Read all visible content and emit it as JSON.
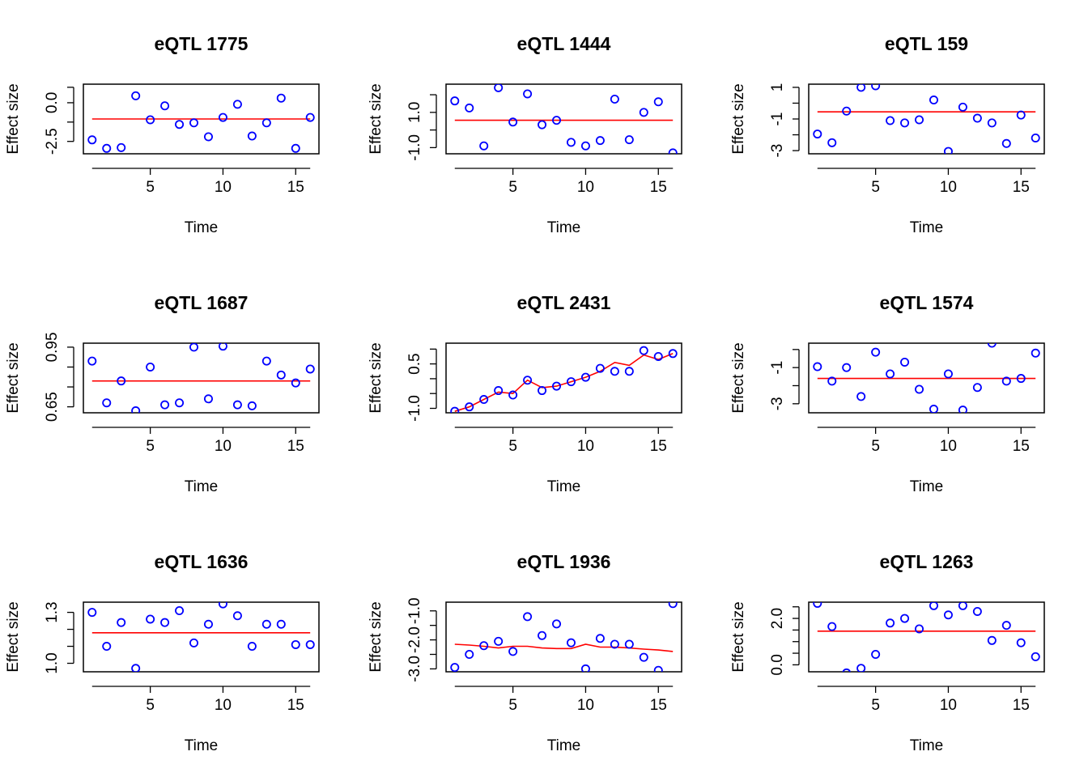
{
  "figure": {
    "xlabel": "Time",
    "ylabel": "Effect size"
  },
  "colors": {
    "points": "#0000ff",
    "fit": "#ff0000",
    "axes": "#000000"
  },
  "chart_data": [
    {
      "type": "scatter",
      "title": "eQTL 1775",
      "xlabel": "Time",
      "ylabel": "Effect size",
      "xlim": [
        0.4,
        16.6
      ],
      "ylim": [
        -3.3,
        1.2
      ],
      "xticks": [
        5,
        10,
        15
      ],
      "yticks": [
        -2.5,
        -1.25,
        0.0,
        1.0
      ],
      "yticklabels": [
        "-2.5",
        "",
        "0.0",
        ""
      ],
      "x": [
        1,
        2,
        3,
        4,
        5,
        6,
        7,
        8,
        9,
        10,
        11,
        12,
        13,
        14,
        15,
        16
      ],
      "y": [
        -2.4,
        -2.95,
        -2.9,
        0.45,
        -1.1,
        -0.2,
        -1.4,
        -1.3,
        -2.2,
        -0.95,
        -0.1,
        -2.15,
        -1.3,
        0.3,
        -2.95,
        -0.95
      ],
      "fit": [
        -1.05,
        -1.05,
        -1.05,
        -1.05,
        -1.05,
        -1.05,
        -1.05,
        -1.05,
        -1.05,
        -1.05,
        -1.05,
        -1.05,
        -1.05,
        -1.05,
        -1.05,
        -1.05
      ]
    },
    {
      "type": "scatter",
      "title": "eQTL 1444",
      "xlabel": "Time",
      "ylabel": "Effect size",
      "xlim": [
        0.4,
        16.6
      ],
      "ylim": [
        -1.35,
        2.6
      ],
      "xticks": [
        5,
        10,
        15
      ],
      "yticks": [
        -1.0,
        0.0,
        1.0,
        2.0
      ],
      "yticklabels": [
        "-1.0",
        "",
        "1.0",
        ""
      ],
      "x": [
        1,
        2,
        3,
        4,
        5,
        6,
        7,
        8,
        9,
        10,
        11,
        12,
        13,
        14,
        15,
        16
      ],
      "y": [
        1.65,
        1.25,
        -0.9,
        2.4,
        0.45,
        2.05,
        0.3,
        0.55,
        -0.7,
        -0.9,
        -0.6,
        1.75,
        -0.55,
        1.0,
        1.6,
        -1.3
      ],
      "fit": [
        0.55,
        0.55,
        0.55,
        0.55,
        0.55,
        0.55,
        0.55,
        0.55,
        0.55,
        0.55,
        0.55,
        0.55,
        0.55,
        0.55,
        0.55,
        0.55
      ]
    },
    {
      "type": "scatter",
      "title": "eQTL 159",
      "xlabel": "Time",
      "ylabel": "Effect size",
      "xlim": [
        0.4,
        16.6
      ],
      "ylim": [
        -3.2,
        1.2
      ],
      "xticks": [
        5,
        10,
        15
      ],
      "yticks": [
        -3,
        -2,
        -1,
        0,
        1
      ],
      "yticklabels": [
        "-3",
        "",
        "-1",
        "",
        "1"
      ],
      "x": [
        1,
        2,
        3,
        4,
        5,
        6,
        7,
        8,
        9,
        10,
        11,
        12,
        13,
        14,
        15,
        16
      ],
      "y": [
        -1.95,
        -2.5,
        -0.5,
        1.0,
        1.1,
        -1.1,
        -1.25,
        -1.05,
        0.2,
        -3.05,
        -0.25,
        -0.95,
        -1.25,
        -2.55,
        -0.75,
        -2.2
      ],
      "fit": [
        -0.55,
        -0.55,
        -0.55,
        -0.55,
        -0.55,
        -0.55,
        -0.55,
        -0.55,
        -0.55,
        -0.55,
        -0.55,
        -0.55,
        -0.55,
        -0.55,
        -0.55,
        -0.55
      ]
    },
    {
      "type": "scatter",
      "title": "eQTL 1687",
      "xlabel": "Time",
      "ylabel": "Effect size",
      "xlim": [
        0.4,
        16.6
      ],
      "ylim": [
        0.62,
        0.97
      ],
      "xticks": [
        5,
        10,
        15
      ],
      "yticks": [
        0.65,
        0.75,
        0.85,
        0.95
      ],
      "yticklabels": [
        "0.65",
        "",
        "",
        "0.95"
      ],
      "x": [
        1,
        2,
        3,
        4,
        5,
        6,
        7,
        8,
        9,
        10,
        11,
        12,
        13,
        14,
        15,
        16
      ],
      "y": [
        0.88,
        0.67,
        0.78,
        0.63,
        0.85,
        0.66,
        0.67,
        0.95,
        0.69,
        0.955,
        0.66,
        0.655,
        0.88,
        0.81,
        0.77,
        0.84
      ],
      "fit": [
        0.78,
        0.78,
        0.78,
        0.78,
        0.78,
        0.78,
        0.78,
        0.78,
        0.78,
        0.78,
        0.78,
        0.78,
        0.78,
        0.78,
        0.78,
        0.78
      ]
    },
    {
      "type": "scatter",
      "title": "eQTL 2431",
      "xlabel": "Time",
      "ylabel": "Effect size",
      "xlim": [
        0.4,
        16.6
      ],
      "ylim": [
        -1.15,
        1.2
      ],
      "xticks": [
        5,
        10,
        15
      ],
      "yticks": [
        -1.0,
        -0.5,
        0.0,
        0.5,
        1.0
      ],
      "yticklabels": [
        "-1.0",
        "",
        "",
        "0.5",
        ""
      ],
      "x": [
        1,
        2,
        3,
        4,
        5,
        6,
        7,
        8,
        9,
        10,
        11,
        12,
        13,
        14,
        15,
        16
      ],
      "y": [
        -1.1,
        -0.95,
        -0.7,
        -0.4,
        -0.55,
        -0.05,
        -0.4,
        -0.25,
        -0.1,
        0.05,
        0.35,
        0.25,
        0.25,
        0.95,
        0.75,
        0.85
      ],
      "fit": [
        -1.1,
        -0.95,
        -0.7,
        -0.45,
        -0.5,
        -0.05,
        -0.3,
        -0.25,
        -0.1,
        0.05,
        0.25,
        0.55,
        0.45,
        0.8,
        0.65,
        0.85
      ]
    },
    {
      "type": "scatter",
      "title": "eQTL 1574",
      "xlabel": "Time",
      "ylabel": "Effect size",
      "xlim": [
        0.4,
        16.6
      ],
      "ylim": [
        -3.5,
        0.35
      ],
      "xticks": [
        5,
        10,
        15
      ],
      "yticks": [
        -3,
        -2,
        -1,
        0
      ],
      "yticklabels": [
        "-3",
        "",
        "-1",
        ""
      ],
      "x": [
        1,
        2,
        3,
        4,
        5,
        6,
        7,
        8,
        9,
        10,
        11,
        12,
        13,
        14,
        15,
        16
      ],
      "y": [
        -0.95,
        -1.75,
        -1.0,
        -2.6,
        -0.15,
        -1.35,
        -0.7,
        -2.2,
        -3.3,
        -1.35,
        -3.35,
        -2.1,
        0.35,
        -1.75,
        -1.6,
        -0.2
      ],
      "fit": [
        -1.6,
        -1.6,
        -1.6,
        -1.6,
        -1.6,
        -1.6,
        -1.6,
        -1.6,
        -1.6,
        -1.6,
        -1.6,
        -1.6,
        -1.6,
        -1.6,
        -1.6,
        -1.6
      ]
    },
    {
      "type": "scatter",
      "title": "eQTL 1636",
      "xlabel": "Time",
      "ylabel": "Effect size",
      "xlim": [
        0.4,
        16.6
      ],
      "ylim": [
        0.95,
        1.36
      ],
      "xticks": [
        5,
        10,
        15
      ],
      "yticks": [
        1.0,
        1.1,
        1.2,
        1.3
      ],
      "yticklabels": [
        "1.0",
        "",
        "",
        "1.3"
      ],
      "x": [
        1,
        2,
        3,
        4,
        5,
        6,
        7,
        8,
        9,
        10,
        11,
        12,
        13,
        14,
        15,
        16
      ],
      "y": [
        1.3,
        1.1,
        1.24,
        0.97,
        1.26,
        1.24,
        1.31,
        1.12,
        1.23,
        1.35,
        1.28,
        1.1,
        1.23,
        1.23,
        1.11,
        1.11
      ],
      "fit": [
        1.18,
        1.18,
        1.18,
        1.18,
        1.18,
        1.18,
        1.18,
        1.18,
        1.18,
        1.18,
        1.18,
        1.18,
        1.18,
        1.18,
        1.18,
        1.18
      ]
    },
    {
      "type": "scatter",
      "title": "eQTL 1936",
      "xlabel": "Time",
      "ylabel": "Effect size",
      "xlim": [
        0.4,
        16.6
      ],
      "ylim": [
        -3.1,
        -0.7
      ],
      "xticks": [
        5,
        10,
        15
      ],
      "yticks": [
        -3.0,
        -2.5,
        -2.0,
        -1.5,
        -1.0
      ],
      "yticklabels": [
        "-3.0",
        "",
        "-2.0",
        "",
        "-1.0"
      ],
      "x": [
        1,
        2,
        3,
        4,
        5,
        6,
        7,
        8,
        9,
        10,
        11,
        12,
        13,
        14,
        15,
        16
      ],
      "y": [
        -2.95,
        -2.5,
        -2.2,
        -2.05,
        -2.4,
        -1.2,
        -1.85,
        -1.45,
        -2.1,
        -3.0,
        -1.95,
        -2.15,
        -2.15,
        -2.6,
        -3.05,
        -0.75
      ],
      "fit": [
        -2.15,
        -2.18,
        -2.22,
        -2.28,
        -2.22,
        -2.22,
        -2.28,
        -2.3,
        -2.3,
        -2.15,
        -2.25,
        -2.25,
        -2.28,
        -2.32,
        -2.35,
        -2.4
      ]
    },
    {
      "type": "scatter",
      "title": "eQTL 1263",
      "xlabel": "Time",
      "ylabel": "Effect size",
      "xlim": [
        0.4,
        16.6
      ],
      "ylim": [
        -0.3,
        2.7
      ],
      "xticks": [
        5,
        10,
        15
      ],
      "yticks": [
        0.0,
        0.5,
        1.0,
        1.5,
        2.0,
        2.5
      ],
      "yticklabels": [
        "0.0",
        "",
        "",
        "",
        "2.0",
        ""
      ],
      "x": [
        1,
        2,
        3,
        4,
        5,
        6,
        7,
        8,
        9,
        10,
        11,
        12,
        13,
        14,
        15,
        16
      ],
      "y": [
        2.65,
        1.65,
        -0.35,
        -0.15,
        0.45,
        1.8,
        2.0,
        1.55,
        2.55,
        2.15,
        2.55,
        2.3,
        1.05,
        1.7,
        0.95,
        0.35
      ],
      "fit": [
        1.45,
        1.45,
        1.45,
        1.45,
        1.45,
        1.45,
        1.45,
        1.45,
        1.45,
        1.45,
        1.45,
        1.45,
        1.45,
        1.45,
        1.45,
        1.45
      ]
    }
  ]
}
